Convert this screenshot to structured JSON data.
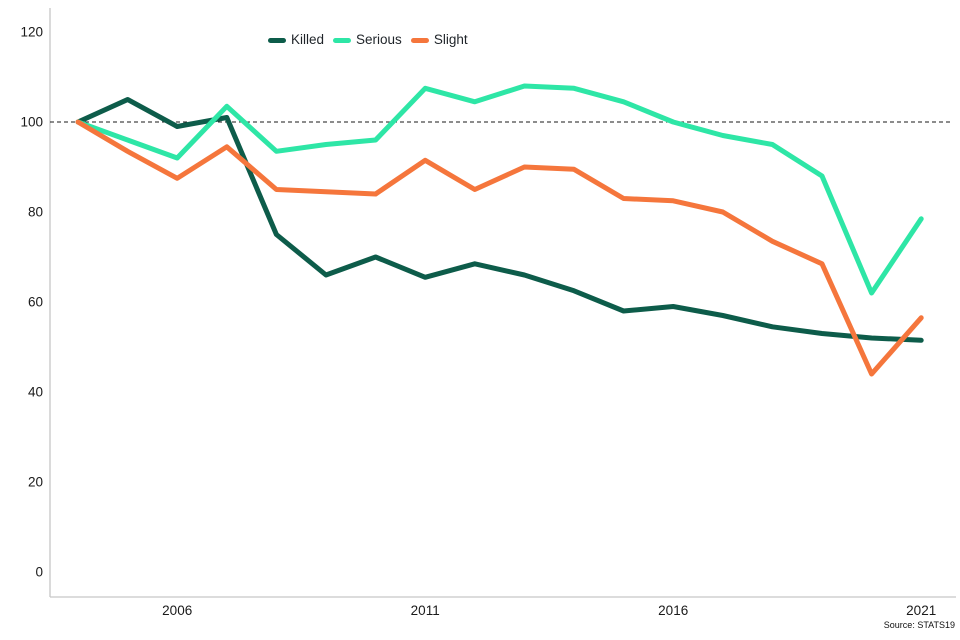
{
  "chart_data": {
    "type": "line",
    "x": [
      2004,
      2005,
      2006,
      2007,
      2008,
      2009,
      2010,
      2011,
      2012,
      2013,
      2014,
      2015,
      2016,
      2017,
      2018,
      2019,
      2020,
      2021
    ],
    "series": [
      {
        "name": "Killed",
        "color": "#0d5c4a",
        "values": [
          100,
          105,
          99,
          101,
          75,
          66,
          70,
          65.5,
          68.5,
          66,
          62.5,
          58,
          59,
          57,
          54.5,
          53,
          52,
          51.5
        ]
      },
      {
        "name": "Serious",
        "color": "#2ee6a6",
        "values": [
          100,
          96,
          92,
          103.5,
          93.5,
          95,
          96,
          107.5,
          104.5,
          108,
          107.5,
          104.5,
          100,
          97,
          95,
          88,
          62,
          78.5
        ]
      },
      {
        "name": "Slight",
        "color": "#f5763c",
        "values": [
          100,
          93.5,
          87.5,
          94.5,
          85,
          84.5,
          84,
          91.5,
          85,
          90,
          89.5,
          83,
          82.5,
          80,
          73.5,
          68.5,
          44,
          56.5
        ]
      }
    ],
    "y_ticks": [
      0,
      20,
      40,
      60,
      80,
      100,
      120
    ],
    "x_tick_years": [
      2006,
      2011,
      2016,
      2021
    ],
    "ylim": [
      0,
      127
    ],
    "reference_line_value": 100,
    "grid": false,
    "legend_position": "top-center",
    "source": "Source: STATS19"
  },
  "colors": {
    "axis": "#c6c6c6",
    "tick_text": "#1a1a1a",
    "reference_line": "#1a1a1a",
    "background": "#ffffff"
  }
}
